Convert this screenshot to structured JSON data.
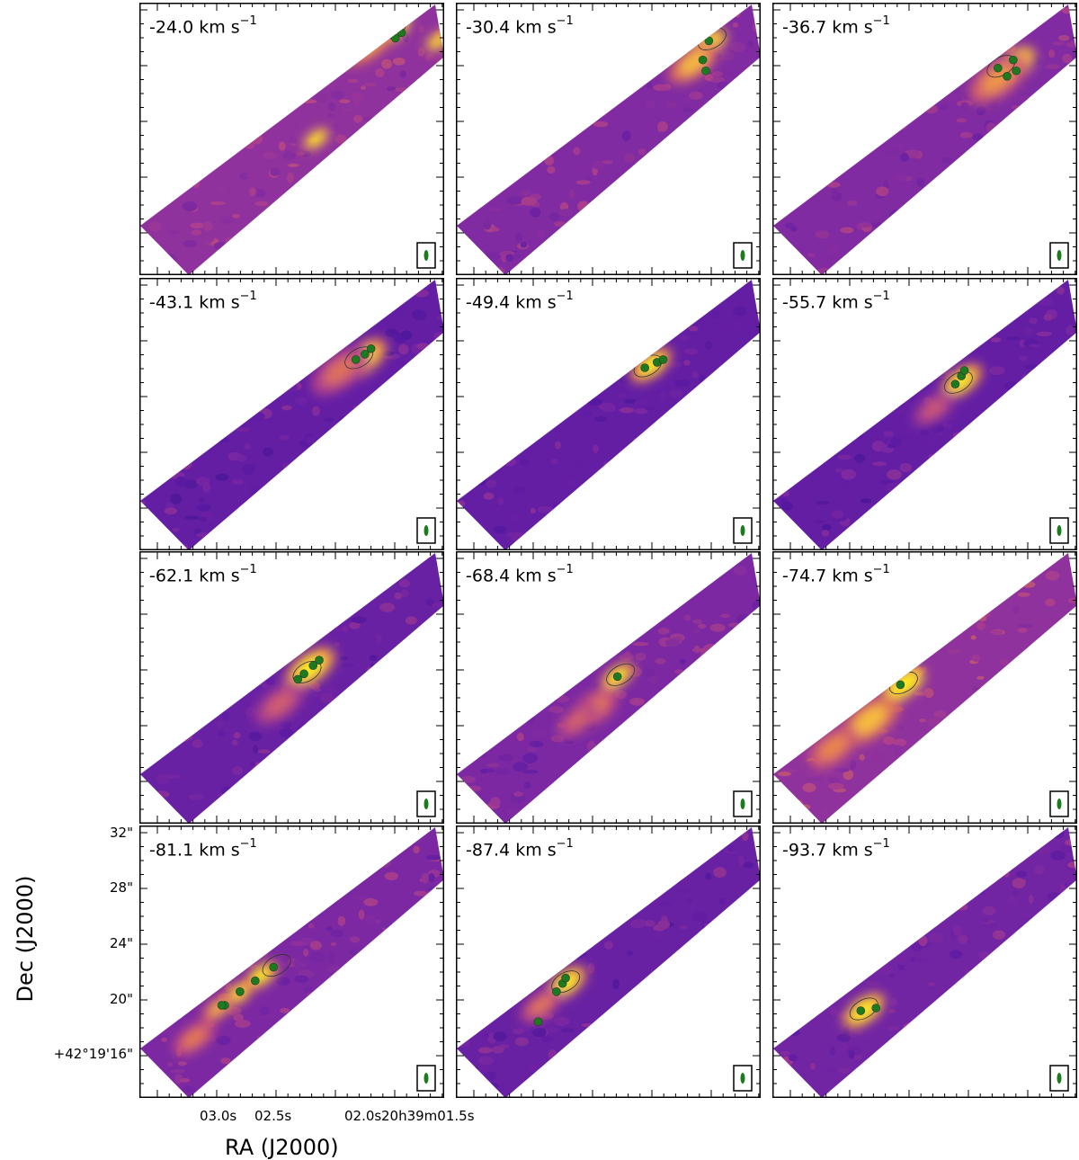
{
  "figure": {
    "xlabel": "RA (J2000)",
    "ylabel": "Dec (J2000)",
    "colormap": [
      "#2e0f8a",
      "#5a1aa5",
      "#8a2fa0",
      "#c44c7f",
      "#e77d4b",
      "#f9c53a",
      "#fbf21f"
    ],
    "clump_color": "#1e7a1e",
    "beam_color": "#1e7a1e",
    "y_ticks": [
      "32\"",
      "28\"",
      "24\"",
      "20\"",
      "+42°19'16\""
    ],
    "x_ticks": [
      "03.0s",
      "02.5s",
      "02.0s",
      "20h39m01.5s"
    ]
  },
  "panels": [
    {
      "velocity": "-24.0",
      "unit": "km s",
      "exp": "−1",
      "bg": 0.35,
      "features": [
        [
          0.82,
          0.1,
          1.0,
          0.05
        ],
        [
          0.75,
          0.14,
          0.55,
          0.07
        ],
        [
          0.58,
          0.5,
          0.9,
          0.03
        ],
        [
          0.98,
          0.14,
          0.8,
          0.03
        ]
      ],
      "clumps": [
        [
          0.82,
          0.1
        ],
        [
          0.84,
          0.13
        ],
        [
          0.86,
          0.11
        ]
      ],
      "noise": 0.05
    },
    {
      "velocity": "-30.4",
      "unit": "km s",
      "exp": "−1",
      "bg": 0.3,
      "features": [
        [
          0.82,
          0.16,
          1.0,
          0.05
        ],
        [
          0.78,
          0.22,
          0.6,
          0.06
        ]
      ],
      "clumps": [
        [
          0.83,
          0.14
        ],
        [
          0.81,
          0.21
        ],
        [
          0.82,
          0.25
        ]
      ],
      "noise": 0.05
    },
    {
      "velocity": "-36.7",
      "unit": "km s",
      "exp": "−1",
      "bg": 0.3,
      "features": [
        [
          0.78,
          0.24,
          1.0,
          0.06
        ],
        [
          0.74,
          0.28,
          0.5,
          0.07
        ]
      ],
      "clumps": [
        [
          0.74,
          0.24
        ],
        [
          0.77,
          0.27
        ],
        [
          0.8,
          0.25
        ],
        [
          0.79,
          0.21
        ]
      ],
      "noise": 0.05
    },
    {
      "velocity": "-43.1",
      "unit": "km s",
      "exp": "−1",
      "bg": 0.2,
      "features": [
        [
          0.73,
          0.3,
          1.0,
          0.06
        ],
        [
          0.66,
          0.34,
          0.5,
          0.07
        ]
      ],
      "clumps": [
        [
          0.71,
          0.3
        ],
        [
          0.74,
          0.28
        ],
        [
          0.76,
          0.26
        ]
      ],
      "noise": 0.04
    },
    {
      "velocity": "-49.4",
      "unit": "km s",
      "exp": "−1",
      "bg": 0.2,
      "features": [
        [
          0.64,
          0.32,
          1.0,
          0.05
        ]
      ],
      "clumps": [
        [
          0.62,
          0.33
        ],
        [
          0.66,
          0.31
        ],
        [
          0.68,
          0.3
        ]
      ],
      "noise": 0.04
    },
    {
      "velocity": "-55.7",
      "unit": "km s",
      "exp": "−1",
      "bg": 0.2,
      "features": [
        [
          0.62,
          0.38,
          1.0,
          0.05
        ],
        [
          0.53,
          0.48,
          0.4,
          0.05
        ]
      ],
      "clumps": [
        [
          0.6,
          0.39
        ],
        [
          0.62,
          0.36
        ],
        [
          0.63,
          0.34
        ]
      ],
      "noise": 0.04
    },
    {
      "velocity": "-62.1",
      "unit": "km s",
      "exp": "−1",
      "bg": 0.22,
      "features": [
        [
          0.56,
          0.43,
          1.0,
          0.06
        ],
        [
          0.46,
          0.56,
          0.4,
          0.06
        ]
      ],
      "clumps": [
        [
          0.54,
          0.45
        ],
        [
          0.57,
          0.42
        ],
        [
          0.59,
          0.4
        ],
        [
          0.52,
          0.47
        ]
      ],
      "noise": 0.05
    },
    {
      "velocity": "-68.4",
      "unit": "km s",
      "exp": "−1",
      "bg": 0.28,
      "features": [
        [
          0.53,
          0.46,
          0.9,
          0.04
        ],
        [
          0.45,
          0.58,
          0.45,
          0.06
        ],
        [
          0.4,
          0.62,
          0.35,
          0.05
        ]
      ],
      "clumps": [
        [
          0.53,
          0.46
        ]
      ],
      "noise": 0.05
    },
    {
      "velocity": "-74.7",
      "unit": "km s",
      "exp": "−1",
      "bg": 0.35,
      "features": [
        [
          0.43,
          0.49,
          1.0,
          0.05
        ],
        [
          0.32,
          0.62,
          0.55,
          0.07
        ],
        [
          0.2,
          0.72,
          0.4,
          0.06
        ]
      ],
      "clumps": [
        [
          0.42,
          0.49
        ]
      ],
      "noise": 0.1
    },
    {
      "velocity": "-81.1",
      "unit": "km s",
      "exp": "−1",
      "bg": 0.28,
      "features": [
        [
          0.4,
          0.55,
          0.9,
          0.04
        ],
        [
          0.32,
          0.62,
          0.8,
          0.04
        ],
        [
          0.26,
          0.67,
          0.6,
          0.04
        ],
        [
          0.18,
          0.78,
          0.45,
          0.05
        ]
      ],
      "clumps": [
        [
          0.44,
          0.52
        ],
        [
          0.38,
          0.57
        ],
        [
          0.33,
          0.61
        ],
        [
          0.28,
          0.66
        ],
        [
          0.27,
          0.66
        ]
      ],
      "noise": 0.06
    },
    {
      "velocity": "-87.4",
      "unit": "km s",
      "exp": "−1",
      "bg": 0.22,
      "features": [
        [
          0.36,
          0.58,
          1.0,
          0.05
        ],
        [
          0.28,
          0.66,
          0.5,
          0.05
        ]
      ],
      "clumps": [
        [
          0.35,
          0.58
        ],
        [
          0.36,
          0.56
        ],
        [
          0.33,
          0.61
        ],
        [
          0.27,
          0.72
        ]
      ],
      "noise": 0.04
    },
    {
      "velocity": "-93.7",
      "unit": "km s",
      "exp": "−1",
      "bg": 0.25,
      "features": [
        [
          0.3,
          0.68,
          1.0,
          0.05
        ]
      ],
      "clumps": [
        [
          0.29,
          0.68
        ],
        [
          0.34,
          0.67
        ]
      ],
      "noise": 0.05
    }
  ]
}
